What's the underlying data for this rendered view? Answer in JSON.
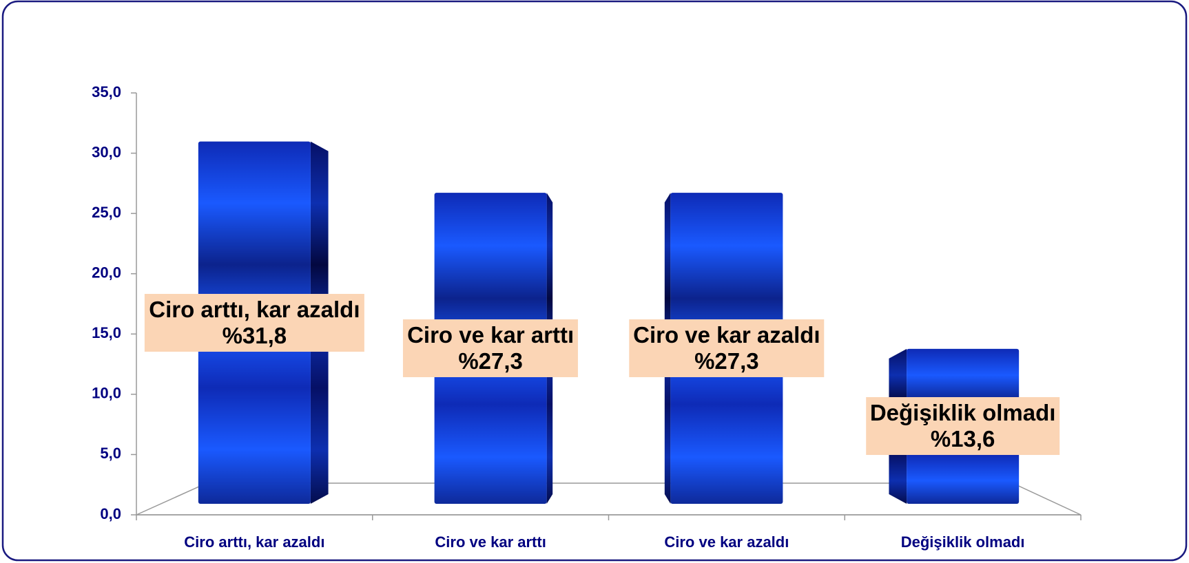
{
  "chart_data": {
    "type": "bar",
    "categories": [
      "Ciro arttı, kar azaldı",
      "Ciro ve kar arttı",
      "Ciro ve kar azaldı",
      "Değişiklik olmadı"
    ],
    "values": [
      31.8,
      27.3,
      27.3,
      13.6
    ],
    "value_labels": [
      "%31,8",
      "%27,3",
      "%27,3",
      "%13,6"
    ],
    "color": "#1a4fff",
    "ylim": [
      0,
      35
    ],
    "yticks": [
      {
        "value": 0,
        "label": "0,0"
      },
      {
        "value": 5,
        "label": "5,0"
      },
      {
        "value": 10,
        "label": "10,0"
      },
      {
        "value": 15,
        "label": "15,0"
      },
      {
        "value": 20,
        "label": "20,0"
      },
      {
        "value": 25,
        "label": "25,0"
      },
      {
        "value": 30,
        "label": "30,0"
      },
      {
        "value": 35,
        "label": "35,0"
      }
    ]
  }
}
